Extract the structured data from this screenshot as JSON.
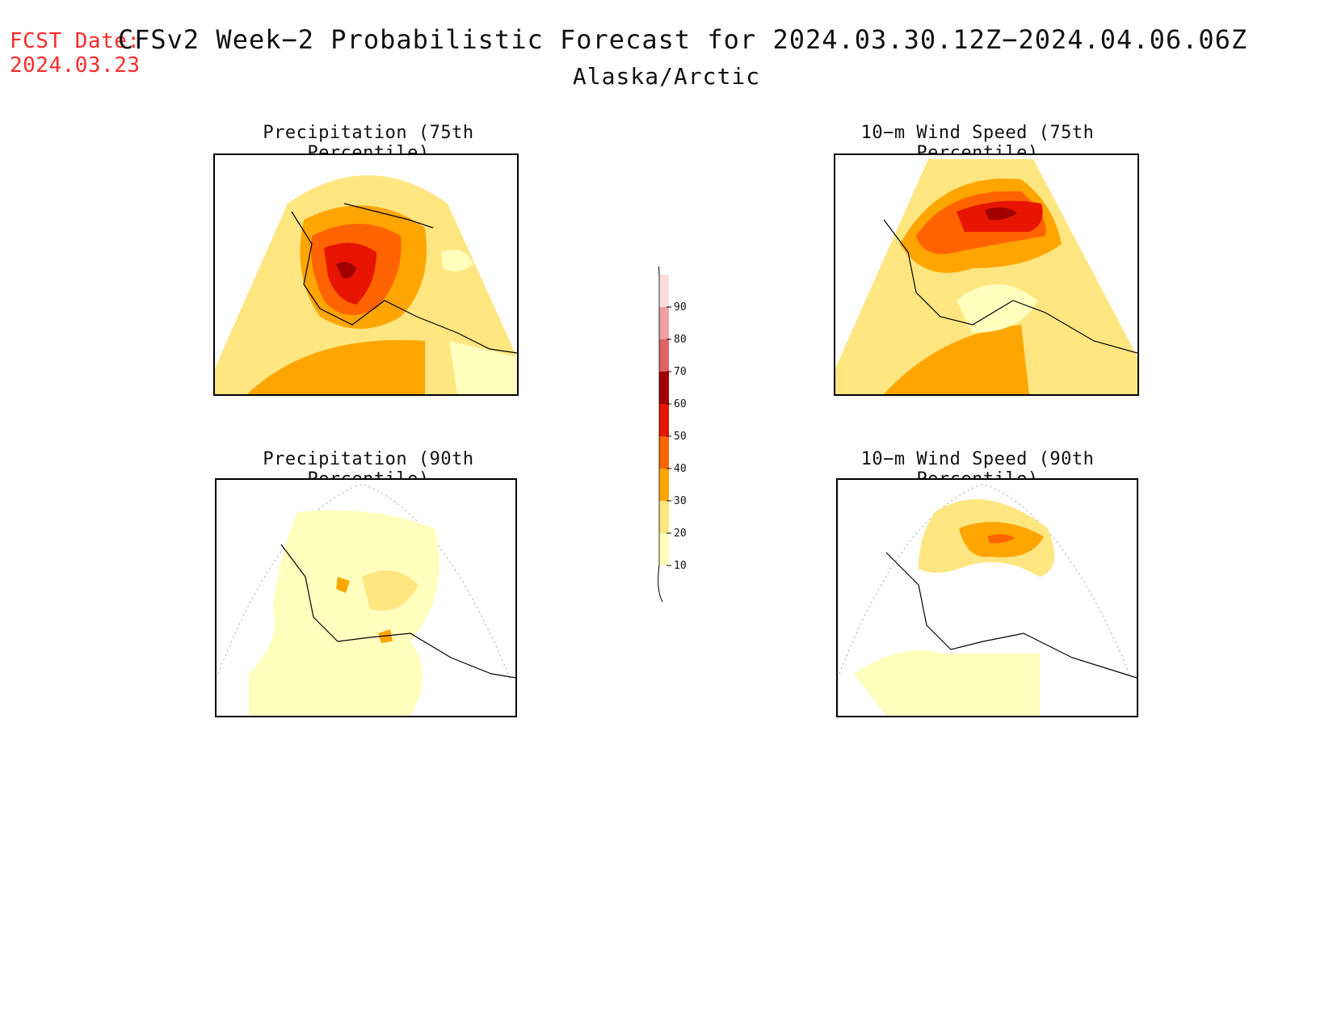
{
  "forecast_date": {
    "label": "FCST Date:",
    "value": "2024.03.23"
  },
  "header": {
    "title": "CFSv2 Week−2 Probabilistic Forecast for 2024.03.30.12Z−2024.04.06.06Z",
    "region": "Alaska/Arctic"
  },
  "panels": [
    {
      "id": "precip-75",
      "title": "Precipitation (75th Percentile)",
      "max_level": 70
    },
    {
      "id": "wind-75",
      "title": "10−m Wind Speed (75th Percentile)",
      "max_level": 70
    },
    {
      "id": "precip-90",
      "title": "Precipitation (90th Percentile)",
      "max_level": 40
    },
    {
      "id": "wind-90",
      "title": "10−m Wind Speed (90th Percentile)",
      "max_level": 50
    }
  ],
  "colorbar": {
    "levels": [
      "10",
      "20",
      "30",
      "40",
      "50",
      "60",
      "70",
      "80",
      "90"
    ],
    "colors": {
      "below_10": "#ffffff",
      "10_20": "#ffffbe",
      "20_30": "#ffe680",
      "30_40": "#ffa500",
      "40_50": "#ff6400",
      "50_60": "#e61400",
      "60_70": "#a00000",
      "70_80": "#e06464",
      "80_90": "#f0a0a0",
      "above_90": "#ffdcdc"
    }
  }
}
